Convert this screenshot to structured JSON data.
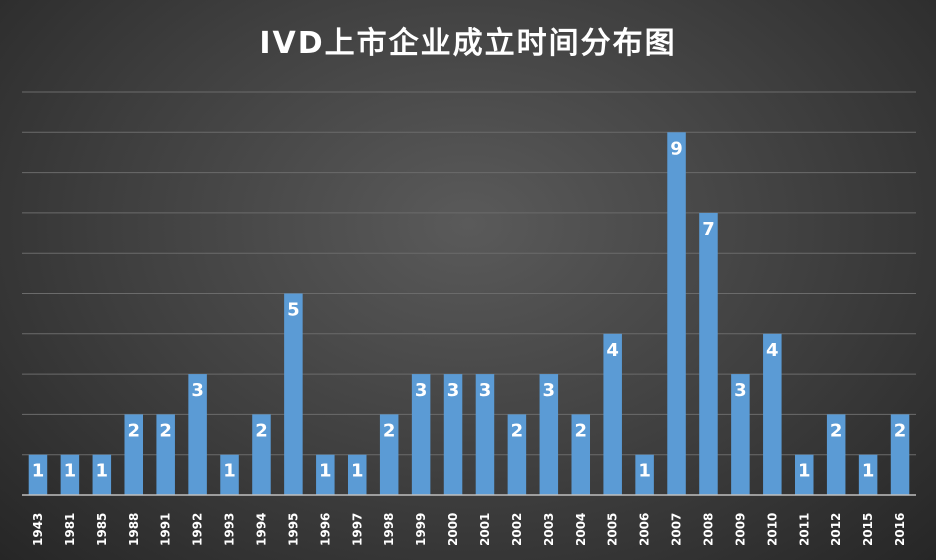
{
  "chart_data": {
    "type": "bar",
    "title": "IVD上市企业成立时间分布图",
    "categories": [
      "1943",
      "1981",
      "1985",
      "1988",
      "1991",
      "1992",
      "1993",
      "1994",
      "1995",
      "1996",
      "1997",
      "1998",
      "1999",
      "2000",
      "2001",
      "2002",
      "2003",
      "2004",
      "2005",
      "2006",
      "2007",
      "2008",
      "2009",
      "2010",
      "2011",
      "2012",
      "2015",
      "2016"
    ],
    "values": [
      1,
      1,
      1,
      2,
      2,
      3,
      1,
      2,
      5,
      1,
      1,
      2,
      3,
      3,
      3,
      2,
      3,
      2,
      4,
      1,
      9,
      7,
      3,
      4,
      1,
      2,
      1,
      2
    ],
    "ylim": [
      0,
      10
    ],
    "grid": true,
    "bar_color": "#5b9bd5",
    "xlabel": "",
    "ylabel": ""
  }
}
